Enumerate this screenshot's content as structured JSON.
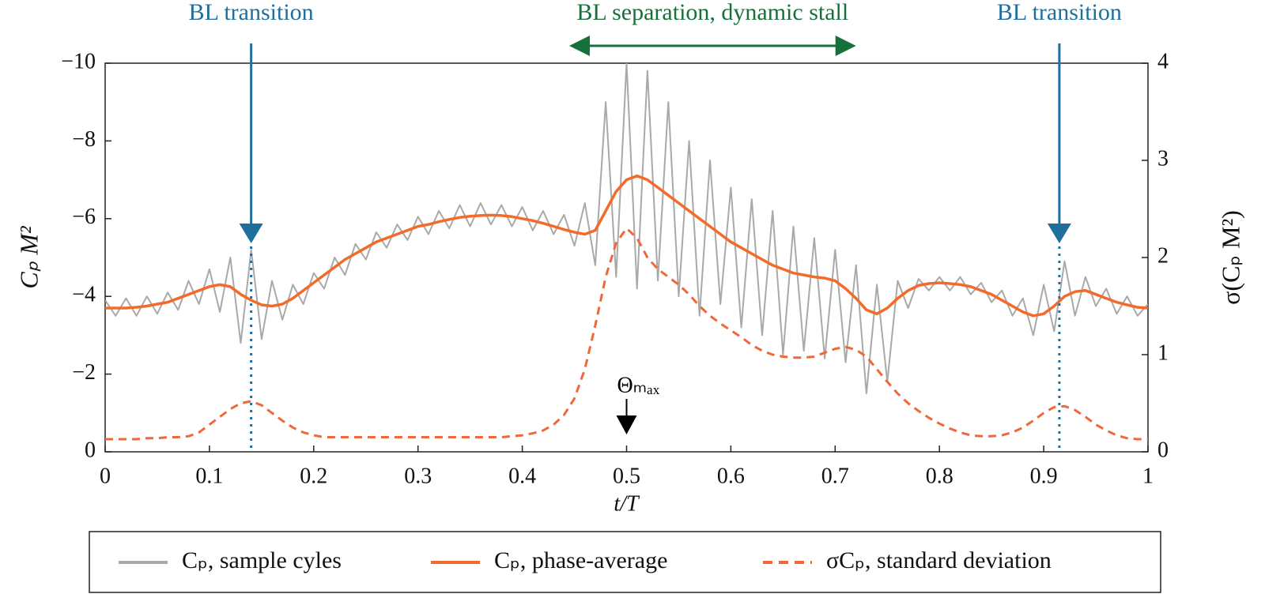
{
  "chart_data": {
    "type": "line",
    "xlabel": "t/T",
    "ylabel": "Cₚ M²",
    "y2label": "σ(Cₚ M²)",
    "xlim": [
      0,
      1
    ],
    "xticks": [
      0,
      0.1,
      0.2,
      0.3,
      0.4,
      0.5,
      0.6,
      0.7,
      0.8,
      0.9,
      1
    ],
    "ylim": [
      0,
      -10
    ],
    "yticks": [
      {
        "value": 0,
        "label": "0"
      },
      {
        "value": -2,
        "label": "−2"
      },
      {
        "value": -4,
        "label": "−4"
      },
      {
        "value": -6,
        "label": "−6"
      },
      {
        "value": -8,
        "label": "−8"
      },
      {
        "value": -10,
        "label": "−10"
      }
    ],
    "y2lim": [
      0,
      4
    ],
    "y2ticks": [
      0,
      1,
      2,
      3,
      4
    ],
    "x": [
      0,
      0.01,
      0.02,
      0.03,
      0.04,
      0.05,
      0.06,
      0.07,
      0.08,
      0.09,
      0.1,
      0.11,
      0.12,
      0.13,
      0.14,
      0.15,
      0.16,
      0.17,
      0.18,
      0.19,
      0.2,
      0.21,
      0.22,
      0.23,
      0.24,
      0.25,
      0.26,
      0.27,
      0.28,
      0.29,
      0.3,
      0.31,
      0.32,
      0.33,
      0.34,
      0.35,
      0.36,
      0.37,
      0.38,
      0.39,
      0.4,
      0.41,
      0.42,
      0.43,
      0.44,
      0.45,
      0.46,
      0.47,
      0.48,
      0.49,
      0.5,
      0.51,
      0.52,
      0.53,
      0.54,
      0.55,
      0.56,
      0.57,
      0.58,
      0.59,
      0.6,
      0.61,
      0.62,
      0.63,
      0.64,
      0.65,
      0.66,
      0.67,
      0.68,
      0.69,
      0.7,
      0.71,
      0.72,
      0.73,
      0.74,
      0.75,
      0.76,
      0.77,
      0.78,
      0.79,
      0.8,
      0.81,
      0.82,
      0.83,
      0.84,
      0.85,
      0.86,
      0.87,
      0.88,
      0.89,
      0.9,
      0.91,
      0.92,
      0.93,
      0.94,
      0.95,
      0.96,
      0.97,
      0.98,
      0.99,
      1
    ],
    "series": [
      {
        "name": "Cₚ, sample cyles",
        "color": "#a9a9a9",
        "style": "solid",
        "width": 2,
        "values": [
          -3.9,
          -3.5,
          -3.95,
          -3.5,
          -4.0,
          -3.55,
          -4.1,
          -3.65,
          -4.4,
          -3.8,
          -4.7,
          -3.6,
          -5.0,
          -2.8,
          -5.2,
          -2.9,
          -4.4,
          -3.4,
          -4.3,
          -3.8,
          -4.6,
          -4.2,
          -5.0,
          -4.55,
          -5.35,
          -4.95,
          -5.65,
          -5.25,
          -5.85,
          -5.45,
          -6.05,
          -5.6,
          -6.2,
          -5.75,
          -6.35,
          -5.8,
          -6.4,
          -5.85,
          -6.35,
          -5.8,
          -6.3,
          -5.7,
          -6.2,
          -5.6,
          -6.1,
          -5.3,
          -6.4,
          -4.8,
          -9.0,
          -4.5,
          -10,
          -4.2,
          -9.8,
          -4.4,
          -9.0,
          -4.0,
          -8.0,
          -3.5,
          -7.5,
          -3.8,
          -6.8,
          -3.2,
          -6.5,
          -3.0,
          -6.2,
          -2.5,
          -5.8,
          -2.6,
          -5.5,
          -2.4,
          -5.2,
          -2.3,
          -4.8,
          -1.5,
          -4.3,
          -1.8,
          -4.4,
          -3.7,
          -4.45,
          -4.15,
          -4.5,
          -4.15,
          -4.5,
          -4.05,
          -4.35,
          -3.85,
          -4.15,
          -3.5,
          -3.95,
          -3.0,
          -4.3,
          -3.1,
          -4.9,
          -3.5,
          -4.5,
          -3.75,
          -4.2,
          -3.55,
          -4.0,
          -3.5,
          -3.8
        ]
      },
      {
        "name": "Cₚ, phase-average",
        "color": "#f26b2a",
        "style": "solid",
        "width": 3.5,
        "values": [
          -3.7,
          -3.7,
          -3.7,
          -3.72,
          -3.75,
          -3.8,
          -3.85,
          -3.95,
          -4.05,
          -4.15,
          -4.25,
          -4.3,
          -4.25,
          -4.05,
          -3.9,
          -3.78,
          -3.75,
          -3.8,
          -3.95,
          -4.15,
          -4.35,
          -4.55,
          -4.75,
          -4.95,
          -5.1,
          -5.25,
          -5.4,
          -5.5,
          -5.6,
          -5.7,
          -5.8,
          -5.85,
          -5.92,
          -5.98,
          -6.03,
          -6.06,
          -6.08,
          -6.09,
          -6.08,
          -6.05,
          -6.0,
          -5.95,
          -5.88,
          -5.8,
          -5.72,
          -5.65,
          -5.6,
          -5.7,
          -6.2,
          -6.7,
          -7.0,
          -7.1,
          -7.0,
          -6.8,
          -6.6,
          -6.4,
          -6.2,
          -6.0,
          -5.8,
          -5.6,
          -5.4,
          -5.25,
          -5.1,
          -4.95,
          -4.8,
          -4.7,
          -4.6,
          -4.55,
          -4.5,
          -4.47,
          -4.4,
          -4.2,
          -3.95,
          -3.65,
          -3.55,
          -3.7,
          -3.95,
          -4.15,
          -4.28,
          -4.33,
          -4.35,
          -4.33,
          -4.3,
          -4.25,
          -4.15,
          -4.05,
          -3.9,
          -3.75,
          -3.6,
          -3.5,
          -3.55,
          -3.75,
          -4.0,
          -4.12,
          -4.15,
          -4.05,
          -3.95,
          -3.85,
          -3.78,
          -3.72,
          -3.7
        ]
      },
      {
        "name": "σCₚ, standard deviation",
        "color": "#f0673a",
        "style": "dashed",
        "width": 3,
        "axis": "y2",
        "values": [
          0.13,
          0.13,
          0.13,
          0.13,
          0.14,
          0.14,
          0.15,
          0.15,
          0.16,
          0.2,
          0.28,
          0.36,
          0.44,
          0.5,
          0.52,
          0.48,
          0.4,
          0.32,
          0.25,
          0.2,
          0.17,
          0.15,
          0.15,
          0.15,
          0.15,
          0.15,
          0.15,
          0.15,
          0.15,
          0.15,
          0.15,
          0.15,
          0.15,
          0.15,
          0.15,
          0.15,
          0.15,
          0.15,
          0.15,
          0.16,
          0.17,
          0.19,
          0.22,
          0.28,
          0.38,
          0.55,
          0.85,
          1.3,
          1.8,
          2.15,
          2.3,
          2.2,
          2.0,
          1.88,
          1.8,
          1.72,
          1.62,
          1.5,
          1.4,
          1.32,
          1.25,
          1.18,
          1.1,
          1.04,
          1.0,
          0.98,
          0.97,
          0.97,
          0.98,
          1.02,
          1.06,
          1.08,
          1.05,
          0.98,
          0.85,
          0.72,
          0.6,
          0.5,
          0.42,
          0.35,
          0.29,
          0.24,
          0.2,
          0.17,
          0.16,
          0.16,
          0.17,
          0.2,
          0.25,
          0.32,
          0.4,
          0.46,
          0.47,
          0.43,
          0.36,
          0.28,
          0.22,
          0.17,
          0.14,
          0.13,
          0.13
        ]
      }
    ],
    "annotations": [
      {
        "text": "BL transition",
        "x": 0.14,
        "kind": "arrow",
        "color": "#1f6e9c"
      },
      {
        "text": "BL separation, dynamic stall",
        "x": [
          0.445,
          0.72
        ],
        "kind": "span",
        "color": "#16703a"
      },
      {
        "text": "BL transition",
        "x": 0.915,
        "kind": "arrow",
        "color": "#1f6e9c"
      },
      {
        "text": "Θₘₐₓ",
        "x": 0.5,
        "kind": "marker",
        "color": "#000000"
      }
    ]
  }
}
